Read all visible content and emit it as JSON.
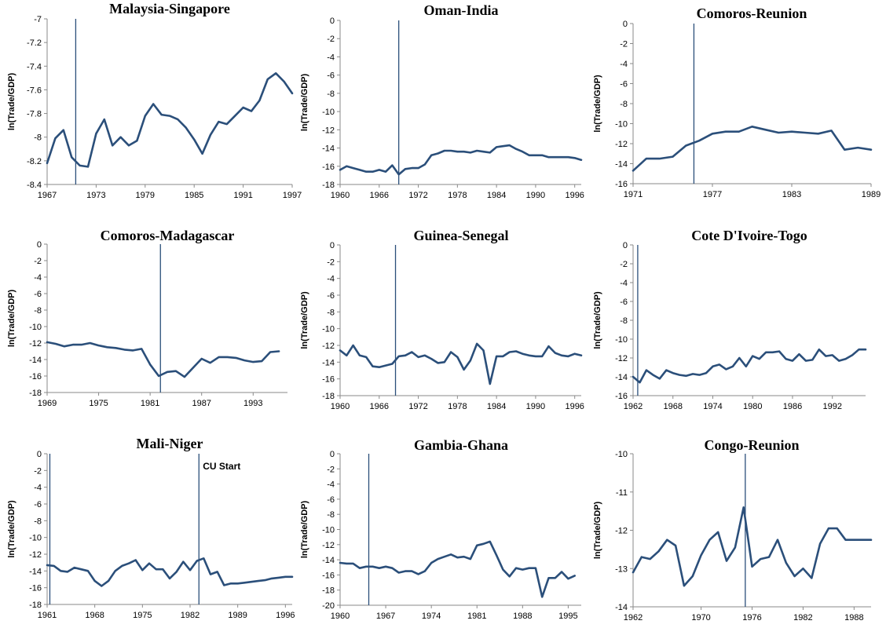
{
  "chart_data": [
    {
      "type": "line",
      "title": "Malaysia-Singapore",
      "ylabel": "ln(Trade/GDP)",
      "xlim": [
        1967,
        1997
      ],
      "ylim": [
        -8.4,
        -7
      ],
      "xticks": [
        1967,
        1973,
        1979,
        1985,
        1991,
        1997
      ],
      "yticks": [
        -7,
        -7.2,
        -7.4,
        -7.6,
        -7.8,
        -8,
        -8.2,
        -8.4
      ],
      "cu_start": 1970.5,
      "series": [
        {
          "color": "#2b4f7a",
          "x": [
            1967,
            1968,
            1969,
            1970,
            1971,
            1972,
            1973,
            1974,
            1975,
            1976,
            1977,
            1978,
            1979,
            1980,
            1981,
            1982,
            1983,
            1984,
            1985,
            1986,
            1987,
            1988,
            1989,
            1990,
            1991,
            1992,
            1993,
            1994,
            1995,
            1996,
            1997
          ],
          "y": [
            -8.22,
            -8.01,
            -7.94,
            -8.17,
            -8.24,
            -8.25,
            -7.97,
            -7.85,
            -8.07,
            -8.0,
            -8.07,
            -8.03,
            -7.82,
            -7.72,
            -7.81,
            -7.82,
            -7.85,
            -7.92,
            -8.02,
            -8.14,
            -7.98,
            -7.87,
            -7.89,
            -7.82,
            -7.75,
            -7.78,
            -7.69,
            -7.51,
            -7.46,
            -7.53,
            -7.63
          ]
        }
      ]
    },
    {
      "type": "line",
      "title": "Oman-India",
      "ylabel": "ln(Trade/GDP)",
      "xlim": [
        1960,
        1997
      ],
      "ylim": [
        -18,
        0
      ],
      "xticks": [
        1960,
        1966,
        1972,
        1978,
        1984,
        1990,
        1996
      ],
      "yticks": [
        0,
        -2,
        -4,
        -6,
        -8,
        -10,
        -12,
        -14,
        -16,
        -18
      ],
      "cu_start": 1969,
      "series": [
        {
          "color": "#2b4f7a",
          "x": [
            1960,
            1961,
            1962,
            1963,
            1964,
            1965,
            1966,
            1967,
            1968,
            1969,
            1970,
            1971,
            1972,
            1973,
            1974,
            1975,
            1976,
            1977,
            1978,
            1979,
            1980,
            1981,
            1982,
            1983,
            1984,
            1985,
            1986,
            1987,
            1988,
            1989,
            1990,
            1991,
            1992,
            1993,
            1994,
            1995,
            1996,
            1997
          ],
          "y": [
            -16.4,
            -16.0,
            -16.2,
            -16.4,
            -16.6,
            -16.6,
            -16.4,
            -16.6,
            -15.9,
            -16.9,
            -16.3,
            -16.2,
            -16.2,
            -15.8,
            -14.8,
            -14.6,
            -14.3,
            -14.3,
            -14.4,
            -14.4,
            -14.5,
            -14.3,
            -14.4,
            -14.5,
            -13.9,
            -13.8,
            -13.7,
            -14.1,
            -14.4,
            -14.8,
            -14.8,
            -14.8,
            -15.0,
            -15.0,
            -15.0,
            -15.0,
            -15.1,
            -15.3
          ]
        }
      ]
    },
    {
      "type": "line",
      "title": "Comoros-Reunion",
      "ylabel": "ln(Trade/GDP)",
      "xlim": [
        1971,
        1989
      ],
      "ylim": [
        -16,
        0
      ],
      "xticks": [
        1971,
        1977,
        1983,
        1989
      ],
      "yticks": [
        0,
        -2,
        -4,
        -6,
        -8,
        -10,
        -12,
        -14,
        -16
      ],
      "cu_start": 1975.6,
      "series": [
        {
          "color": "#2b4f7a",
          "x": [
            1971,
            1972,
            1973,
            1974,
            1975,
            1976,
            1977,
            1978,
            1979,
            1980,
            1981,
            1982,
            1983,
            1984,
            1985,
            1986,
            1987,
            1988,
            1989
          ],
          "y": [
            -14.7,
            -13.5,
            -13.5,
            -13.3,
            -12.2,
            -11.7,
            -11.0,
            -10.8,
            -10.8,
            -10.3,
            -10.6,
            -10.9,
            -10.8,
            -10.9,
            -11.0,
            -10.7,
            -12.6,
            -12.4,
            -12.6
          ]
        }
      ]
    },
    {
      "type": "line",
      "title": "Comoros-Madagascar",
      "ylabel": "ln(Trade/GDP)",
      "xlim": [
        1969,
        1997
      ],
      "ylim": [
        -18,
        0
      ],
      "xticks": [
        1969,
        1975,
        1981,
        1987,
        1993
      ],
      "yticks": [
        0,
        -2,
        -4,
        -6,
        -8,
        -10,
        -12,
        -14,
        -16,
        -18
      ],
      "cu_start": 1982.2,
      "series": [
        {
          "color": "#2b4f7a",
          "x": [
            1969,
            1970,
            1971,
            1972,
            1973,
            1974,
            1975,
            1976,
            1977,
            1978,
            1979,
            1980,
            1981,
            1982,
            1983,
            1984,
            1985,
            1986,
            1987,
            1988,
            1989,
            1990,
            1991,
            1992,
            1993,
            1994,
            1995,
            1996
          ],
          "y": [
            -11.9,
            -12.1,
            -12.4,
            -12.2,
            -12.2,
            -12.0,
            -12.3,
            -12.5,
            -12.6,
            -12.8,
            -12.9,
            -12.7,
            -14.6,
            -16.0,
            -15.5,
            -15.4,
            -16.1,
            -15.0,
            -13.9,
            -14.4,
            -13.7,
            -13.7,
            -13.8,
            -14.1,
            -14.3,
            -14.2,
            -13.1,
            -13.0
          ]
        }
      ]
    },
    {
      "type": "line",
      "title": "Guinea-Senegal",
      "ylabel": "ln(Trade/GDP)",
      "xlim": [
        1960,
        1997
      ],
      "ylim": [
        -18,
        0
      ],
      "xticks": [
        1960,
        1966,
        1972,
        1978,
        1984,
        1990,
        1996
      ],
      "yticks": [
        0,
        -2,
        -4,
        -6,
        -8,
        -10,
        -12,
        -14,
        -16,
        -18
      ],
      "cu_start": 1968.5,
      "series": [
        {
          "color": "#2b4f7a",
          "x": [
            1960,
            1961,
            1962,
            1963,
            1964,
            1965,
            1966,
            1967,
            1968,
            1969,
            1970,
            1971,
            1972,
            1973,
            1974,
            1975,
            1976,
            1977,
            1978,
            1979,
            1980,
            1981,
            1982,
            1983,
            1984,
            1985,
            1986,
            1987,
            1988,
            1989,
            1990,
            1991,
            1992,
            1993,
            1994,
            1995,
            1996,
            1997
          ],
          "y": [
            -12.6,
            -13.2,
            -12.0,
            -13.2,
            -13.4,
            -14.5,
            -14.6,
            -14.4,
            -14.2,
            -13.3,
            -13.2,
            -12.8,
            -13.4,
            -13.2,
            -13.6,
            -14.1,
            -14.0,
            -12.8,
            -13.4,
            -14.9,
            -13.8,
            -11.8,
            -12.6,
            -16.6,
            -13.3,
            -13.3,
            -12.8,
            -12.7,
            -13.0,
            -13.2,
            -13.3,
            -13.3,
            -12.1,
            -12.9,
            -13.2,
            -13.3,
            -13.0,
            -13.2
          ]
        }
      ]
    },
    {
      "type": "line",
      "title": "Cote D'Ivoire-Togo",
      "ylabel": "ln(Trade/GDP)",
      "xlim": [
        1962,
        1997
      ],
      "ylim": [
        -16,
        0
      ],
      "xticks": [
        1962,
        1968,
        1974,
        1980,
        1986,
        1992
      ],
      "yticks": [
        0,
        -2,
        -4,
        -6,
        -8,
        -10,
        -12,
        -14,
        -16
      ],
      "cu_start": 1962.7,
      "series": [
        {
          "color": "#2b4f7a",
          "x": [
            1962,
            1963,
            1964,
            1965,
            1966,
            1967,
            1968,
            1969,
            1970,
            1971,
            1972,
            1973,
            1974,
            1975,
            1976,
            1977,
            1978,
            1979,
            1980,
            1981,
            1982,
            1983,
            1984,
            1985,
            1986,
            1987,
            1988,
            1989,
            1990,
            1991,
            1992,
            1993,
            1994,
            1995,
            1996,
            1997
          ],
          "y": [
            -14.0,
            -14.6,
            -13.3,
            -13.8,
            -14.2,
            -13.3,
            -13.6,
            -13.8,
            -13.9,
            -13.7,
            -13.8,
            -13.6,
            -12.9,
            -12.7,
            -13.2,
            -12.9,
            -12.0,
            -12.9,
            -11.8,
            -12.1,
            -11.4,
            -11.4,
            -11.3,
            -12.1,
            -12.3,
            -11.6,
            -12.3,
            -12.2,
            -11.1,
            -11.8,
            -11.7,
            -12.3,
            -12.1,
            -11.7,
            -11.1,
            -11.1
          ]
        }
      ]
    },
    {
      "type": "line",
      "title": "Mali-Niger",
      "ylabel": "ln(Trade/GDP)",
      "xlim": [
        1961,
        1997
      ],
      "ylim": [
        -18,
        0
      ],
      "xticks": [
        1961,
        1968,
        1975,
        1982,
        1989,
        1996
      ],
      "yticks": [
        0,
        -2,
        -4,
        -6,
        -8,
        -10,
        -12,
        -14,
        -16,
        -18
      ],
      "cu_start": [
        1961.4,
        1983.3
      ],
      "annotation": "CU Start",
      "series": [
        {
          "color": "#2b4f7a",
          "x": [
            1961,
            1962,
            1963,
            1964,
            1965,
            1966,
            1967,
            1968,
            1969,
            1970,
            1971,
            1972,
            1973,
            1974,
            1975,
            1976,
            1977,
            1978,
            1979,
            1980,
            1981,
            1982,
            1983,
            1984,
            1985,
            1986,
            1987,
            1988,
            1989,
            1990,
            1991,
            1992,
            1993,
            1994,
            1995,
            1996,
            1997
          ],
          "y": [
            -13.3,
            -13.4,
            -14.0,
            -14.1,
            -13.6,
            -13.8,
            -14.0,
            -15.2,
            -15.8,
            -15.2,
            -14.0,
            -13.4,
            -13.1,
            -12.7,
            -13.9,
            -13.1,
            -13.8,
            -13.8,
            -14.9,
            -14.1,
            -12.9,
            -13.9,
            -12.8,
            -12.5,
            -14.4,
            -14.1,
            -15.7,
            -15.5,
            -15.5,
            -15.4,
            -15.3,
            -15.2,
            -15.1,
            -14.9,
            -14.8,
            -14.7,
            -14.7
          ]
        }
      ]
    },
    {
      "type": "line",
      "title": "Gambia-Ghana",
      "ylabel": "ln(Trade/GDP)",
      "xlim": [
        1960,
        1997
      ],
      "ylim": [
        -20,
        0
      ],
      "xticks": [
        1960,
        1967,
        1974,
        1981,
        1988,
        1995
      ],
      "yticks": [
        0,
        -2,
        -4,
        -6,
        -8,
        -10,
        -12,
        -14,
        -16,
        -18,
        -20
      ],
      "cu_start": 1964.4,
      "series": [
        {
          "color": "#2b4f7a",
          "x": [
            1960,
            1961,
            1962,
            1963,
            1964,
            1965,
            1966,
            1967,
            1968,
            1969,
            1970,
            1971,
            1972,
            1973,
            1974,
            1975,
            1976,
            1977,
            1978,
            1979,
            1980,
            1981,
            1982,
            1983,
            1984,
            1985,
            1986,
            1987,
            1988,
            1989,
            1990,
            1991,
            1992,
            1993,
            1994,
            1995,
            1996
          ],
          "y": [
            -14.4,
            -14.5,
            -14.5,
            -15.1,
            -14.9,
            -14.9,
            -15.1,
            -14.9,
            -15.1,
            -15.7,
            -15.5,
            -15.5,
            -15.9,
            -15.5,
            -14.4,
            -13.9,
            -13.6,
            -13.3,
            -13.7,
            -13.6,
            -13.9,
            -12.1,
            -11.9,
            -11.6,
            -13.4,
            -15.3,
            -16.2,
            -15.1,
            -15.3,
            -15.1,
            -15.1,
            -18.9,
            -16.4,
            -16.4,
            -15.6,
            -16.5,
            -16.1
          ]
        }
      ]
    },
    {
      "type": "line",
      "title": "Congo-Reunion",
      "ylabel": "ln(Trade/GDP)",
      "xlim": [
        1962,
        1990
      ],
      "ylim": [
        -14,
        -10
      ],
      "xticks": [
        1962,
        1970,
        1976,
        1982,
        1988
      ],
      "yticks": [
        -10,
        -11,
        -12,
        -13,
        -14
      ],
      "cu_start": 1975.2,
      "series": [
        {
          "color": "#2b4f7a",
          "x": [
            1962,
            1963,
            1964,
            1965,
            1966,
            1967,
            1968,
            1969,
            1970,
            1971,
            1972,
            1973,
            1974,
            1975,
            1976,
            1977,
            1978,
            1979,
            1980,
            1981,
            1982,
            1983,
            1984,
            1985,
            1986,
            1987,
            1988,
            1989,
            1990
          ],
          "y": [
            -13.1,
            -12.7,
            -12.75,
            -12.55,
            -12.25,
            -12.4,
            -13.45,
            -13.2,
            -12.65,
            -12.25,
            -12.05,
            -12.8,
            -12.45,
            -11.4,
            -12.95,
            -12.75,
            -12.7,
            -12.25,
            -12.85,
            -13.2,
            -13.0,
            -13.25,
            -12.35,
            -11.95,
            -11.95,
            -12.25,
            -12.25,
            -12.25,
            -12.25
          ]
        }
      ]
    }
  ]
}
